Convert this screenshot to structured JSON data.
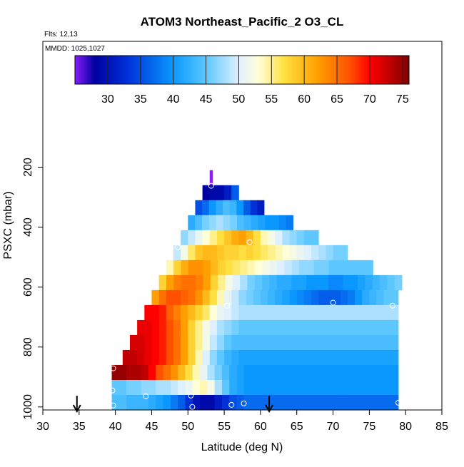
{
  "chart_data": {
    "type": "heatmap",
    "title": "ATOM3 Northeast_Pacific_2 O3_CL",
    "flights": "Flts: 12,13",
    "dates": "MMDD: 1025,1027",
    "x_label": "Latitude (deg N)",
    "y_label": "PSXC (mbar)",
    "xlim": [
      30,
      85
    ],
    "xticks": [
      30,
      35,
      40,
      45,
      50,
      55,
      60,
      65,
      70,
      75,
      80,
      85
    ],
    "ylim": [
      1010,
      -220
    ],
    "yticks": [
      200,
      400,
      600,
      800,
      1000
    ],
    "clim": [
      25,
      76
    ],
    "cticks": [
      30,
      35,
      40,
      45,
      50,
      55,
      60,
      65,
      70,
      75
    ],
    "colormap": [
      [
        25,
        "#8a1cff"
      ],
      [
        28,
        "#0000a0"
      ],
      [
        33,
        "#0030d8"
      ],
      [
        40,
        "#0a98ff"
      ],
      [
        45,
        "#5cc8ff"
      ],
      [
        50,
        "#dff0ff"
      ],
      [
        53,
        "#ffffd8"
      ],
      [
        57,
        "#ffe040"
      ],
      [
        62,
        "#ffa000"
      ],
      [
        67,
        "#ff5000"
      ],
      [
        70,
        "#ff0000"
      ],
      [
        73,
        "#c00000"
      ],
      [
        76,
        "#800000"
      ]
    ],
    "rows": [
      {
        "p": [
          210,
          260
        ],
        "lat": [
          53,
          53.4
        ],
        "values": [
          25
        ]
      },
      {
        "p": [
          260,
          310
        ],
        "lat": [
          52,
          57
        ],
        "values": [
          28,
          29,
          29,
          31,
          36
        ]
      },
      {
        "p": [
          310,
          360
        ],
        "lat": [
          51,
          60.5
        ],
        "values": [
          35,
          37,
          40,
          42,
          44,
          43,
          40,
          36,
          33,
          31
        ]
      },
      {
        "p": [
          360,
          410
        ],
        "lat": [
          50,
          64.5
        ],
        "values": [
          42,
          44,
          46,
          47,
          48,
          47,
          46,
          44,
          43,
          42,
          41,
          40,
          40,
          39,
          38
        ]
      },
      {
        "p": [
          410,
          460
        ],
        "lat": [
          49,
          68
        ],
        "values": [
          47,
          49,
          51,
          53,
          55,
          57,
          59,
          61,
          62,
          60,
          57,
          54,
          52,
          50,
          48,
          47,
          46,
          45,
          45
        ]
      },
      {
        "p": [
          460,
          510
        ],
        "lat": [
          48,
          72
        ],
        "values": [
          49,
          52,
          56,
          59,
          60,
          60,
          59,
          58,
          58,
          57,
          58,
          57,
          56,
          55,
          54,
          53,
          52,
          51,
          50,
          49,
          48,
          47,
          46,
          46
        ]
      },
      {
        "p": [
          510,
          560
        ],
        "lat": [
          47,
          75.5
        ],
        "values": [
          54,
          58,
          61,
          63,
          63,
          62,
          60,
          58,
          57,
          56,
          55,
          54,
          53,
          52,
          51,
          50,
          49,
          48,
          47,
          47,
          46,
          46,
          45,
          45,
          45,
          45,
          45,
          45
        ]
      },
      {
        "p": [
          560,
          610
        ],
        "lat": [
          46,
          79.5
        ],
        "values": [
          58,
          62,
          64,
          65,
          65,
          64,
          62,
          58,
          55,
          52,
          50,
          48,
          46,
          45,
          44,
          43,
          42,
          42,
          41,
          41,
          40,
          40,
          40,
          39,
          39,
          40,
          40,
          41,
          42,
          43,
          44,
          45,
          46
        ]
      },
      {
        "p": [
          610,
          660
        ],
        "lat": [
          45,
          79
        ],
        "values": [
          62,
          65,
          67,
          67,
          66,
          65,
          63,
          60,
          57,
          54,
          51,
          49,
          47,
          46,
          45,
          44,
          43,
          42,
          41,
          40,
          39,
          38,
          37,
          36,
          36,
          36,
          37,
          38,
          40,
          42,
          43,
          44,
          45,
          45
        ]
      },
      {
        "p": [
          660,
          710
        ],
        "lat": [
          44,
          79
        ],
        "values": [
          70,
          70,
          69,
          66,
          64,
          62,
          60,
          58,
          56,
          53,
          51,
          50,
          49,
          48,
          48,
          48,
          48,
          48,
          48,
          48,
          48,
          48,
          48,
          48,
          48,
          48,
          48,
          48,
          48,
          48,
          48,
          48,
          48,
          48,
          48
        ]
      },
      {
        "p": [
          710,
          760
        ],
        "lat": [
          43,
          79
        ],
        "values": [
          71,
          71,
          70,
          69,
          67,
          65,
          62,
          58,
          55,
          52,
          50,
          48,
          47,
          46,
          45,
          45,
          45,
          45,
          45,
          45,
          45,
          45,
          45,
          45,
          45,
          45,
          45,
          45,
          45,
          45,
          45,
          45,
          45,
          45,
          45,
          45
        ]
      },
      {
        "p": [
          760,
          810
        ],
        "lat": [
          42,
          79
        ],
        "values": [
          72,
          72,
          71,
          70,
          69,
          67,
          65,
          62,
          58,
          55,
          52,
          49,
          47,
          45,
          44,
          44,
          44,
          44,
          44,
          44,
          44,
          44,
          44,
          44,
          44,
          44,
          44,
          44,
          44,
          44,
          44,
          44,
          44,
          44,
          44,
          44,
          44
        ]
      },
      {
        "p": [
          810,
          860
        ],
        "lat": [
          41,
          79
        ],
        "values": [
          73,
          73,
          72,
          71,
          70,
          69,
          67,
          65,
          62,
          58,
          54,
          50,
          47,
          45,
          43,
          42,
          41,
          41,
          41,
          41,
          41,
          41,
          41,
          41,
          41,
          41,
          41,
          41,
          41,
          41,
          41,
          41,
          41,
          41,
          41,
          41,
          41,
          41
        ]
      },
      {
        "p": [
          860,
          910
        ],
        "lat": [
          39.5,
          79
        ],
        "values": [
          75,
          75,
          74,
          74,
          73,
          70,
          67,
          65,
          63,
          60,
          57,
          54,
          51,
          48,
          46,
          44,
          42,
          41,
          40,
          40,
          40,
          40,
          40,
          40,
          40,
          40,
          40,
          40,
          40,
          40,
          40,
          40,
          40,
          40,
          40,
          40,
          40,
          40,
          40
        ]
      },
      {
        "p": [
          910,
          960
        ],
        "lat": [
          39.5,
          79
        ],
        "values": [
          45,
          45,
          46,
          46,
          47,
          47,
          48,
          48,
          49,
          50,
          51,
          53,
          54,
          52,
          48,
          45,
          42,
          41,
          40,
          40,
          40,
          40,
          40,
          40,
          40,
          40,
          40,
          40,
          40,
          40,
          40,
          40,
          40,
          40,
          40,
          40,
          40,
          40,
          40
        ]
      },
      {
        "p": [
          960,
          1010
        ],
        "lat": [
          39.5,
          79
        ],
        "values": [
          44,
          44,
          43,
          43,
          43,
          42,
          41,
          40,
          38,
          36,
          33,
          30,
          29,
          29,
          31,
          33,
          35,
          36,
          37,
          37,
          37,
          37,
          37,
          37,
          37,
          37,
          37,
          37,
          37,
          37,
          37,
          37,
          37,
          37,
          37,
          37,
          37,
          37,
          37
        ]
      }
    ],
    "points": {
      "lat": [
        53.2,
        48.6,
        58.5,
        55.4,
        70,
        78.2,
        39.7,
        39.6,
        44.2,
        50.4,
        50.6,
        56,
        57.7,
        39.7,
        79
      ],
      "pressure": [
        262,
        467,
        450,
        662,
        652,
        662,
        871,
        945,
        964,
        962,
        1000,
        993,
        988,
        995,
        986
      ]
    },
    "arrows_lat": [
      34.7,
      61.2
    ]
  }
}
